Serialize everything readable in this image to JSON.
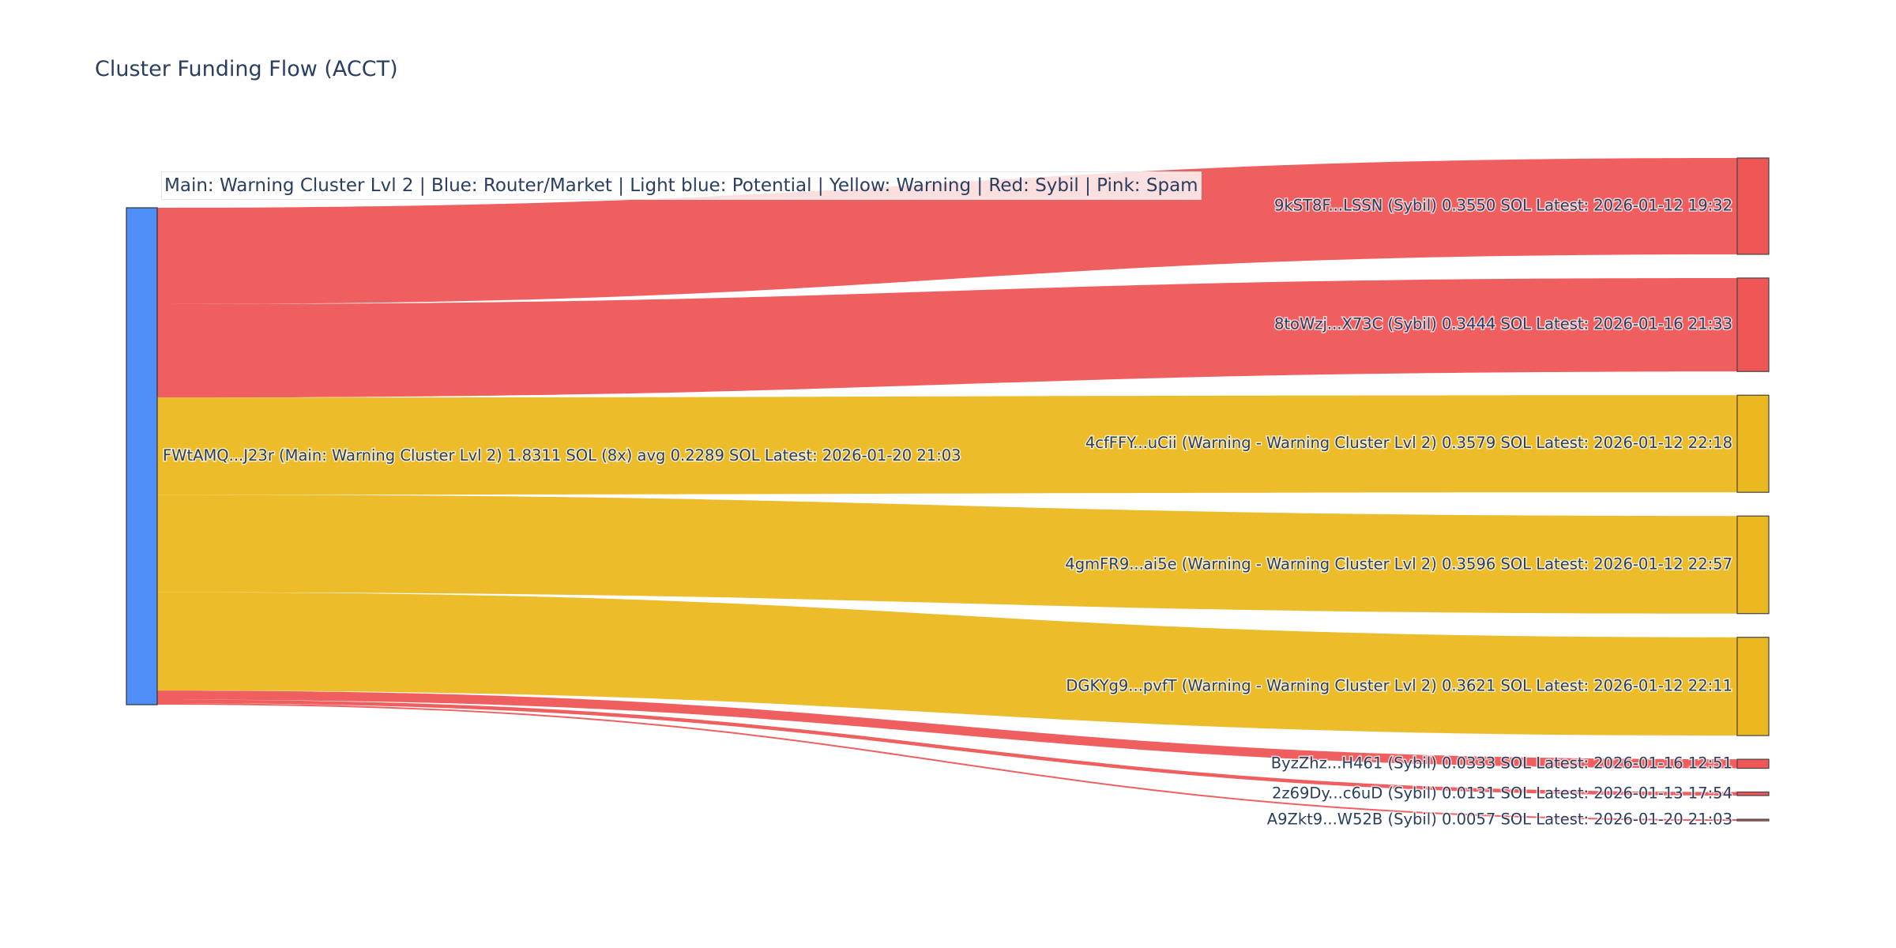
{
  "chart_data": {
    "type": "sankey",
    "title": "Cluster Funding Flow (ACCT)",
    "annotation": "Main: Warning Cluster Lvl 2  |  Blue: Router/Market | Light blue: Potential | Yellow: Warning | Red: Sybil | Pink: Spam",
    "unit": "SOL",
    "colors": {
      "blue": "#4f8ef7",
      "red": "#ef5656",
      "yellow": "#ebb820",
      "link_red": "#ef5656",
      "link_yellow": "#ebb820"
    },
    "source": {
      "label": "FWtAMQ...J23r (Main: Warning Cluster Lvl 2) 1.8311 SOL (8x) avg 0.2289 SOL Latest: 2026-01-20 21:03",
      "value": 1.8311,
      "color": "blue"
    },
    "targets": [
      {
        "label": "9kST8F...LSSN (Sybil) 0.3550 SOL Latest: 2026-01-12 19:32",
        "value": 0.355,
        "color": "red"
      },
      {
        "label": "8toWzj...X73C (Sybil) 0.3444 SOL Latest: 2026-01-16 21:33",
        "value": 0.3444,
        "color": "red"
      },
      {
        "label": "4cfFFY...uCii (Warning - Warning Cluster Lvl 2) 0.3579 SOL Latest: 2026-01-12 22:18",
        "value": 0.3579,
        "color": "yellow"
      },
      {
        "label": "4gmFR9...ai5e (Warning - Warning Cluster Lvl 2) 0.3596 SOL Latest: 2026-01-12 22:57",
        "value": 0.3596,
        "color": "yellow"
      },
      {
        "label": "DGKYg9...pvfT (Warning - Warning Cluster Lvl 2) 0.3621 SOL Latest: 2026-01-12 22:11",
        "value": 0.3621,
        "color": "yellow"
      },
      {
        "label": "ByzZhz...H461 (Sybil) 0.0333 SOL Latest: 2026-01-16 12:51",
        "value": 0.0333,
        "color": "red"
      },
      {
        "label": "2z69Dy...c6uD (Sybil) 0.0131 SOL Latest: 2026-01-13 17:54",
        "value": 0.0131,
        "color": "red"
      },
      {
        "label": "A9Zkt9...W52B (Sybil) 0.0057 SOL Latest: 2026-01-20 21:03",
        "value": 0.0057,
        "color": "red"
      }
    ]
  }
}
